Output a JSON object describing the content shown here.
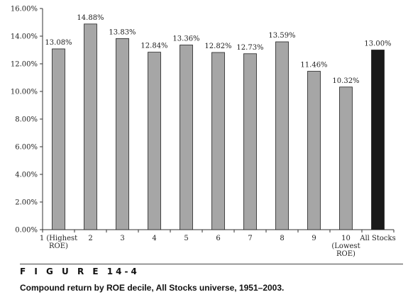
{
  "figure": {
    "label": "F I G U R E  14-4",
    "caption": "Compound return by ROE decile, All Stocks universe, 1951–2003."
  },
  "colors": {
    "bar": "#a6a6a6",
    "highlight": "#1a1a1a",
    "axis": "#333333"
  },
  "chart_data": {
    "type": "bar",
    "categories": [
      [
        "1 (Highest",
        "ROE)"
      ],
      [
        "2"
      ],
      [
        "3"
      ],
      [
        "4"
      ],
      [
        "5"
      ],
      [
        "6"
      ],
      [
        "7"
      ],
      [
        "8"
      ],
      [
        "9"
      ],
      [
        "10",
        "(Lowest",
        "ROE)"
      ],
      [
        "All Stocks"
      ]
    ],
    "values": [
      13.08,
      14.88,
      13.83,
      12.84,
      13.36,
      12.82,
      12.73,
      13.59,
      11.46,
      10.32,
      13.0
    ],
    "data_labels": [
      "13.08%",
      "14.88%",
      "13.83%",
      "12.84%",
      "13.36%",
      "12.82%",
      "12.73%",
      "13.59%",
      "11.46%",
      "10.32%",
      "13.00%"
    ],
    "highlight_index": 10,
    "ylim": [
      0,
      16
    ],
    "yticks": [
      0,
      2,
      4,
      6,
      8,
      10,
      12,
      14,
      16
    ],
    "ytick_labels": [
      "0.00%",
      "2.00%",
      "4.00%",
      "6.00%",
      "8.00%",
      "10.00%",
      "12.00%",
      "14.00%",
      "16.00%"
    ],
    "grid": false,
    "title": "",
    "xlabel": "",
    "ylabel": ""
  }
}
